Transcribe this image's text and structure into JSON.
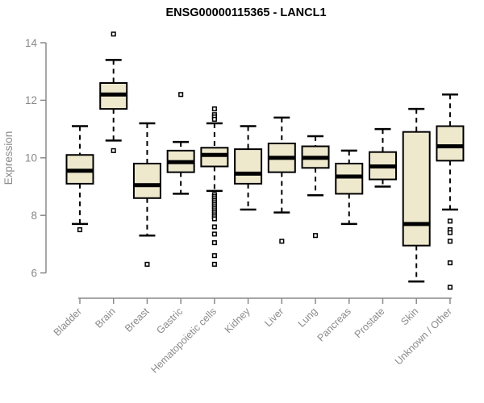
{
  "chart_data": {
    "type": "boxplot",
    "title": "ENSG00000115365 - LANCL1",
    "ylabel": "Expression",
    "xlabel": "",
    "ylim": [
      5.2,
      14.6
    ],
    "yticks": [
      6,
      8,
      10,
      12,
      14
    ],
    "grid": false,
    "legend": "none",
    "categories": [
      "Bladder",
      "Brain",
      "Breast",
      "Gastric",
      "Hematopoietic cells",
      "Kidney",
      "Liver",
      "Lung",
      "Pancreas",
      "Prostate",
      "Skin",
      "Unknown / Other"
    ],
    "boxes": [
      {
        "category": "Bladder",
        "whisker_low": 7.7,
        "q1": 9.1,
        "median": 9.55,
        "q3": 10.1,
        "whisker_high": 11.1,
        "outliers": [
          7.5
        ]
      },
      {
        "category": "Brain",
        "whisker_low": 10.6,
        "q1": 11.7,
        "median": 12.2,
        "q3": 12.6,
        "whisker_high": 13.4,
        "outliers": [
          14.3,
          10.25
        ]
      },
      {
        "category": "Breast",
        "whisker_low": 7.3,
        "q1": 8.6,
        "median": 9.05,
        "q3": 9.8,
        "whisker_high": 11.2,
        "outliers": [
          6.3
        ]
      },
      {
        "category": "Gastric",
        "whisker_low": 8.75,
        "q1": 9.5,
        "median": 9.85,
        "q3": 10.25,
        "whisker_high": 10.55,
        "outliers": [
          12.2
        ]
      },
      {
        "category": "Hematopoietic cells",
        "whisker_low": 8.85,
        "q1": 9.7,
        "median": 10.1,
        "q3": 10.35,
        "whisker_high": 11.2,
        "outliers": [
          11.7,
          11.5,
          11.42,
          11.34,
          8.72,
          8.65,
          8.58,
          8.51,
          8.44,
          8.37,
          8.3,
          8.23,
          8.16,
          8.09,
          8.02,
          7.95,
          7.88,
          7.6,
          7.35,
          7.05,
          6.6,
          6.3
        ]
      },
      {
        "category": "Kidney",
        "whisker_low": 8.2,
        "q1": 9.1,
        "median": 9.45,
        "q3": 10.3,
        "whisker_high": 11.1,
        "outliers": []
      },
      {
        "category": "Liver",
        "whisker_low": 8.1,
        "q1": 9.5,
        "median": 10.0,
        "q3": 10.5,
        "whisker_high": 11.4,
        "outliers": [
          7.1
        ]
      },
      {
        "category": "Lung",
        "whisker_low": 8.7,
        "q1": 9.65,
        "median": 10.0,
        "q3": 10.4,
        "whisker_high": 10.75,
        "outliers": [
          7.3
        ]
      },
      {
        "category": "Pancreas",
        "whisker_low": 7.7,
        "q1": 8.75,
        "median": 9.35,
        "q3": 9.8,
        "whisker_high": 10.25,
        "outliers": []
      },
      {
        "category": "Prostate",
        "whisker_low": 9.0,
        "q1": 9.25,
        "median": 9.7,
        "q3": 10.2,
        "whisker_high": 11.0,
        "outliers": []
      },
      {
        "category": "Skin",
        "whisker_low": 5.7,
        "q1": 6.95,
        "median": 7.7,
        "q3": 10.9,
        "whisker_high": 11.7,
        "outliers": []
      },
      {
        "category": "Unknown / Other",
        "whisker_low": 8.2,
        "q1": 9.9,
        "median": 10.4,
        "q3": 11.1,
        "whisker_high": 12.2,
        "outliers": [
          7.8,
          7.5,
          7.4,
          7.1,
          6.35,
          5.5
        ]
      }
    ],
    "colors": {
      "box_fill": "#EEE8CD",
      "box_border": "#000000",
      "median": "#000000",
      "whisker": "#000000",
      "outlier_stroke": "#000000",
      "outlier_fill": "#ffffff",
      "axis": "#8a8a8a",
      "tick_label": "#8a8a8a",
      "title": "#000000",
      "background": "#ffffff"
    }
  }
}
